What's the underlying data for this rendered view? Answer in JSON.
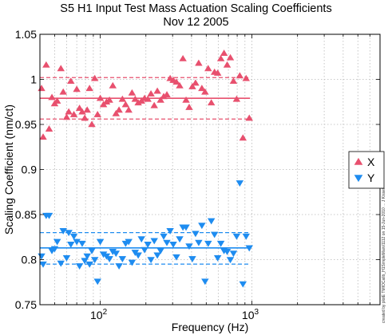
{
  "chart_data": {
    "type": "scatter",
    "title": [
      "S5 H1 Input Test Mass Actuation Scaling Coefficients",
      "Nov 12 2005"
    ],
    "xlabel": "Frequency (Hz)",
    "ylabel": "Scaling Coefficient (nm/ct)",
    "xscale": "log",
    "xlim": [
      40,
      7000
    ],
    "ylim": [
      0.75,
      1.05
    ],
    "x_ticks": [
      {
        "value": 100,
        "base": "10",
        "exp": "2"
      },
      {
        "value": 1000,
        "base": "10",
        "exp": "3"
      }
    ],
    "y_ticks": [
      "0.75",
      "0.8",
      "0.85",
      "0.9",
      "0.95",
      "1",
      "1.05"
    ],
    "grid": true,
    "legend_position": "right",
    "side_note": "created by plotE TMIOCalib_H1SimpleMain/1112 on 15-Jun-2010 ... J Kissel",
    "series": [
      {
        "name": "X",
        "marker": "triangle-up",
        "color": "#e8506e",
        "mean": 0.979,
        "band": [
          0.956,
          1.002
        ],
        "points": [
          [
            41,
            0.99
          ],
          [
            42,
            0.936
          ],
          [
            44,
            1.016
          ],
          [
            46,
            0.945
          ],
          [
            48,
            0.98
          ],
          [
            50,
            0.973
          ],
          [
            52,
            0.976
          ],
          [
            55,
            1.012
          ],
          [
            57,
            0.986
          ],
          [
            60,
            0.958
          ],
          [
            62,
            0.964
          ],
          [
            64,
            0.998
          ],
          [
            67,
            0.961
          ],
          [
            70,
            0.989
          ],
          [
            73,
            0.968
          ],
          [
            76,
            0.964
          ],
          [
            79,
            0.957
          ],
          [
            82,
            0.966
          ],
          [
            85,
            0.99
          ],
          [
            88,
            0.95
          ],
          [
            92,
            1.001
          ],
          [
            96,
            0.961
          ],
          [
            100,
            0.979
          ],
          [
            105,
            0.972
          ],
          [
            110,
            0.975
          ],
          [
            115,
            0.977
          ],
          [
            121,
            0.993
          ],
          [
            127,
            0.962
          ],
          [
            133,
            0.966
          ],
          [
            140,
            0.978
          ],
          [
            147,
            0.972
          ],
          [
            154,
            0.966
          ],
          [
            162,
            0.985
          ],
          [
            170,
            0.978
          ],
          [
            178,
            0.974
          ],
          [
            187,
            0.976
          ],
          [
            196,
            0.979
          ],
          [
            206,
            0.978
          ],
          [
            216,
            0.984
          ],
          [
            227,
            0.971
          ],
          [
            238,
            0.987
          ],
          [
            250,
            0.977
          ],
          [
            262,
            0.981
          ],
          [
            275,
            0.983
          ],
          [
            289,
            1.001
          ],
          [
            303,
            0.999
          ],
          [
            318,
            0.997
          ],
          [
            334,
            0.993
          ],
          [
            351,
            1.023
          ],
          [
            368,
            0.977
          ],
          [
            386,
            0.969
          ],
          [
            405,
            0.992
          ],
          [
            425,
            0.996
          ],
          [
            446,
            1.018
          ],
          [
            468,
            0.99
          ],
          [
            491,
            0.986
          ],
          [
            515,
            1.012
          ],
          [
            540,
            0.974
          ],
          [
            567,
            1.008
          ],
          [
            595,
            1.007
          ],
          [
            624,
            1.023
          ],
          [
            655,
            1.029
          ],
          [
            687,
            1.016
          ],
          [
            721,
            1.024
          ],
          [
            756,
            0.998
          ],
          [
            793,
            0.978
          ],
          [
            832,
            1.004
          ],
          [
            873,
            0.935
          ],
          [
            916,
            1.001
          ],
          [
            961,
            0.957
          ]
        ]
      },
      {
        "name": "Y",
        "marker": "triangle-down",
        "color": "#1e8cf0",
        "mean": 0.813,
        "band": [
          0.795,
          0.83
        ],
        "points": [
          [
            41,
            0.804
          ],
          [
            42,
            0.795
          ],
          [
            44,
            0.849
          ],
          [
            46,
            0.849
          ],
          [
            48,
            0.81
          ],
          [
            50,
            0.812
          ],
          [
            52,
            0.82
          ],
          [
            55,
            0.796
          ],
          [
            57,
            0.832
          ],
          [
            60,
            0.802
          ],
          [
            62,
            0.83
          ],
          [
            64,
            0.817
          ],
          [
            67,
            0.826
          ],
          [
            70,
            0.82
          ],
          [
            73,
            0.793
          ],
          [
            76,
            0.818
          ],
          [
            79,
            0.799
          ],
          [
            82,
            0.804
          ],
          [
            85,
            0.795
          ],
          [
            88,
            0.81
          ],
          [
            92,
            0.8
          ],
          [
            96,
            0.776
          ],
          [
            100,
            0.82
          ],
          [
            105,
            0.806
          ],
          [
            110,
            0.804
          ],
          [
            115,
            0.801
          ],
          [
            121,
            0.809
          ],
          [
            127,
            0.807
          ],
          [
            133,
            0.793
          ],
          [
            140,
            0.801
          ],
          [
            147,
            0.818
          ],
          [
            154,
            0.82
          ],
          [
            162,
            0.797
          ],
          [
            170,
            0.808
          ],
          [
            178,
            0.805
          ],
          [
            187,
            0.823
          ],
          [
            196,
            0.811
          ],
          [
            206,
            0.817
          ],
          [
            216,
            0.8
          ],
          [
            227,
            0.821
          ],
          [
            238,
            0.805
          ],
          [
            250,
            0.81
          ],
          [
            262,
            0.826
          ],
          [
            275,
            0.819
          ],
          [
            289,
            0.832
          ],
          [
            303,
            0.817
          ],
          [
            318,
            0.803
          ],
          [
            334,
            0.823
          ],
          [
            351,
            0.836
          ],
          [
            368,
            0.836
          ],
          [
            386,
            0.815
          ],
          [
            405,
            0.801
          ],
          [
            425,
            0.829
          ],
          [
            446,
            0.819
          ],
          [
            468,
            0.838
          ],
          [
            491,
            0.776
          ],
          [
            515,
            0.818
          ],
          [
            540,
            0.843
          ],
          [
            567,
            0.828
          ],
          [
            595,
            0.802
          ],
          [
            624,
            0.818
          ],
          [
            655,
            0.81
          ],
          [
            687,
            0.809
          ],
          [
            721,
            0.8
          ],
          [
            756,
            0.807
          ],
          [
            793,
            0.826
          ],
          [
            832,
            0.885
          ],
          [
            873,
            0.773
          ],
          [
            916,
            0.826
          ],
          [
            961,
            0.813
          ]
        ]
      }
    ]
  }
}
